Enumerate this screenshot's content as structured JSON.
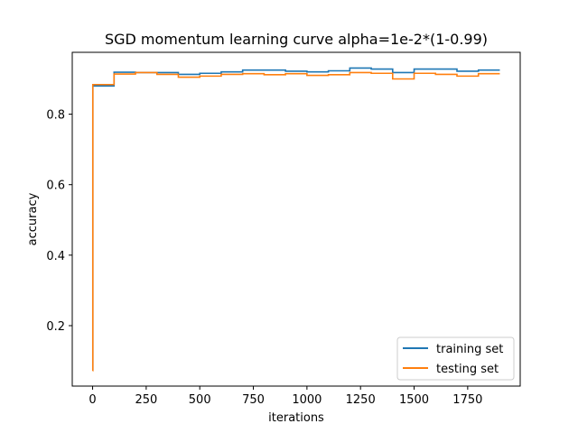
{
  "chart_data": {
    "type": "line",
    "title": "SGD momentum learning curve alpha=1e-2*(1-0.99)",
    "xlabel": "iterations",
    "ylabel": "accuracy",
    "xlim": [
      -95,
      1995
    ],
    "ylim": [
      0.0285,
      0.9755
    ],
    "xticks": [
      0,
      250,
      500,
      750,
      1000,
      1250,
      1500,
      1750
    ],
    "xtick_labels": [
      "0",
      "250",
      "500",
      "750",
      "1000",
      "1250",
      "1500",
      "1750"
    ],
    "yticks": [
      0.2,
      0.4,
      0.6,
      0.8
    ],
    "ytick_labels": [
      "0.2",
      "0.4",
      "0.6",
      "0.8"
    ],
    "step": "post",
    "grid": false,
    "legend_position": "lower-right",
    "series": [
      {
        "name": "training set",
        "color": "#1f77b4",
        "x": [
          0,
          1,
          100,
          200,
          300,
          400,
          500,
          600,
          700,
          800,
          900,
          1000,
          1100,
          1200,
          1300,
          1400,
          1500,
          1600,
          1700,
          1800,
          1900
        ],
        "y": [
          0.075,
          0.88,
          0.919,
          0.918,
          0.918,
          0.913,
          0.916,
          0.92,
          0.925,
          0.925,
          0.922,
          0.92,
          0.923,
          0.931,
          0.928,
          0.918,
          0.928,
          0.928,
          0.922,
          0.925,
          0.925
        ]
      },
      {
        "name": "testing set",
        "color": "#ff7f0e",
        "x": [
          0,
          1,
          100,
          200,
          300,
          400,
          500,
          600,
          700,
          800,
          900,
          1000,
          1100,
          1200,
          1300,
          1400,
          1500,
          1600,
          1700,
          1800,
          1900
        ],
        "y": [
          0.072,
          0.884,
          0.914,
          0.918,
          0.913,
          0.905,
          0.908,
          0.913,
          0.915,
          0.912,
          0.915,
          0.91,
          0.912,
          0.918,
          0.916,
          0.9,
          0.916,
          0.913,
          0.908,
          0.915,
          0.915
        ]
      }
    ]
  }
}
